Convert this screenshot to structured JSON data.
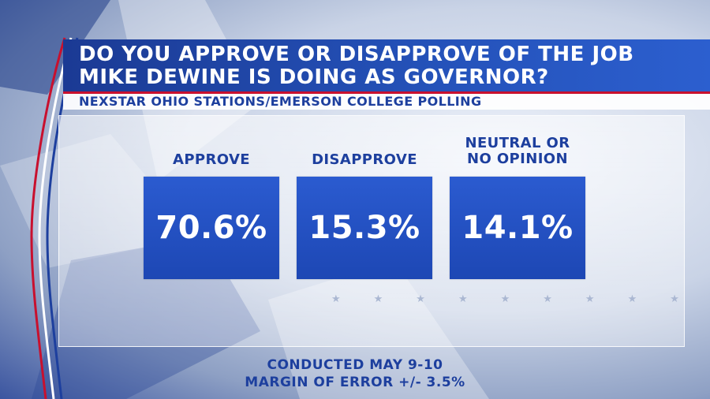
{
  "title": {
    "line1": "DO YOU APPROVE OR DISAPPROVE OF THE JOB",
    "line2": "MIKE DEWINE IS DOING AS GOVERNOR?"
  },
  "subtitle": "NEXSTAR OHIO STATIONS/EMERSON COLLEGE POLLING",
  "results": [
    {
      "label_line1": "APPROVE",
      "label_line2": "",
      "value": "70.6%"
    },
    {
      "label_line1": "DISAPPROVE",
      "label_line2": "",
      "value": "15.3%"
    },
    {
      "label_line1": "NEUTRAL OR",
      "label_line2": "NO OPINION",
      "value": "14.1%"
    }
  ],
  "footer": {
    "line1": "CONDUCTED MAY 9-10",
    "line2": "MARGIN OF ERROR +/- 3.5%"
  },
  "colors": {
    "header_blue": "#2451b8",
    "text_blue": "#1d3f9e",
    "accent_red": "#c8102e"
  }
}
